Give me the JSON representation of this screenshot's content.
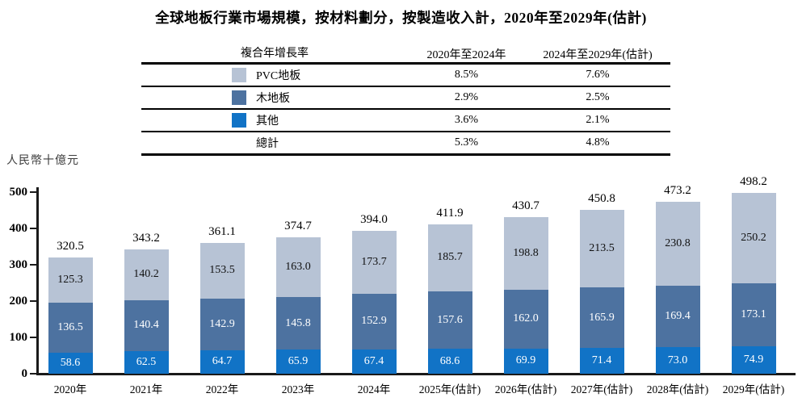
{
  "title": "全球地板行業市場規模，按材料劃分，按製造收入計，2020年至2029年(估計)",
  "cagr_table": {
    "header": {
      "col0": "複合年增長率",
      "col1": "2020年至2024年",
      "col2": "2024年至2029年(估計)"
    },
    "rows": [
      {
        "id": "pvc",
        "label": "PVC地板",
        "swatch": "#b7c3d5",
        "col1": "8.5%",
        "col2": "7.6%"
      },
      {
        "id": "wood",
        "label": "木地板",
        "swatch": "#4d72a0",
        "col1": "2.9%",
        "col2": "2.5%"
      },
      {
        "id": "other",
        "label": "其他",
        "swatch": "#1173c6",
        "col1": "3.6%",
        "col2": "2.1%"
      },
      {
        "id": "total",
        "label": "總計",
        "swatch": null,
        "col1": "5.3%",
        "col2": "4.8%"
      }
    ]
  },
  "chart_data": {
    "type": "bar",
    "stacked": true,
    "unit_label": "人民幣十億元",
    "categories": [
      "2020年",
      "2021年",
      "2022年",
      "2023年",
      "2024年",
      "2025年(估計)",
      "2026年(估計)",
      "2027年(估計)",
      "2028年(估計)",
      "2029年(估計)"
    ],
    "series": [
      {
        "id": "other",
        "name": "其他",
        "color": "#1173c6",
        "text_color": "#ffffff",
        "values": [
          "58.6",
          "62.5",
          "64.7",
          "65.9",
          "67.4",
          "68.6",
          "69.9",
          "71.4",
          "73.0",
          "74.9"
        ]
      },
      {
        "id": "wood",
        "name": "木地板",
        "color": "#4d72a0",
        "text_color": "#ffffff",
        "values": [
          "136.5",
          "140.4",
          "142.9",
          "145.8",
          "152.9",
          "157.6",
          "162.0",
          "165.9",
          "169.4",
          "173.1"
        ]
      },
      {
        "id": "pvc",
        "name": "PVC地板",
        "color": "#b7c3d5",
        "text_color": "#111111",
        "values": [
          "125.3",
          "140.2",
          "153.5",
          "163.0",
          "173.7",
          "185.7",
          "198.8",
          "213.5",
          "230.8",
          "250.2"
        ]
      }
    ],
    "totals": [
      "320.5",
      "343.2",
      "361.1",
      "374.7",
      "394.0",
      "411.9",
      "430.7",
      "450.8",
      "473.2",
      "498.2"
    ],
    "ylim": [
      0,
      500
    ],
    "yticks": [
      0,
      100,
      200,
      300,
      400,
      500
    ],
    "grid": false,
    "legend_position": "table-top-left"
  }
}
